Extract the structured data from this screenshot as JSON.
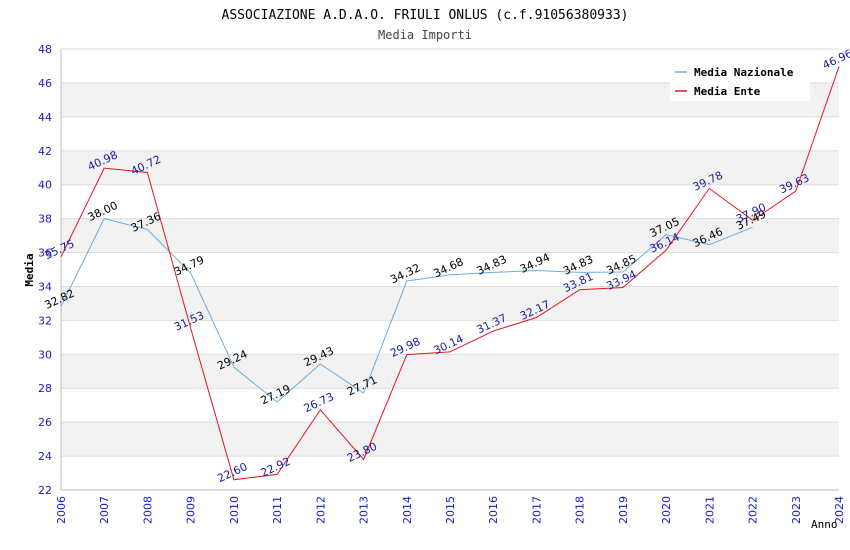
{
  "chart_data": {
    "type": "line",
    "title": "ASSOCIAZIONE A.D.A.O. FRIULI ONLUS (c.f.91056380933)",
    "subtitle": "Media Importi",
    "ylabel": "Media",
    "xlabel": "Anno",
    "ylim": [
      22,
      48
    ],
    "yticks": [
      "22",
      "24",
      "26",
      "28",
      "30",
      "32",
      "34",
      "36",
      "38",
      "40",
      "42",
      "44",
      "46",
      "48"
    ],
    "x": [
      "2006",
      "2007",
      "2008",
      "2009",
      "2010",
      "2011",
      "2012",
      "2013",
      "2014",
      "2015",
      "2016",
      "2017",
      "2018",
      "2019",
      "2020",
      "2021",
      "2022",
      "2023",
      "2024"
    ],
    "grid": "horizontal bands",
    "legend_position": "top-right",
    "series": [
      {
        "name": "Media Nazionale",
        "color": "#6aaee6",
        "label_color": "#000000",
        "values": [
          32.82,
          38.0,
          37.36,
          34.79,
          29.24,
          27.19,
          29.43,
          27.71,
          34.32,
          34.68,
          34.83,
          34.94,
          34.83,
          34.85,
          37.05,
          36.46,
          37.49,
          null,
          null
        ],
        "labels": [
          "32.82",
          "38.00",
          "37.36",
          "34.79",
          "29.24",
          "27.19",
          "29.43",
          "27.71",
          "34.32",
          "34.68",
          "34.83",
          "34.94",
          "34.83",
          "34.85",
          "37.05",
          "36.46",
          "37.49",
          "",
          ""
        ]
      },
      {
        "name": "Media Ente",
        "color": "#e8141e",
        "label_color": "#1a1aa0",
        "values": [
          35.75,
          40.98,
          40.72,
          31.53,
          22.6,
          22.92,
          26.73,
          23.8,
          29.98,
          30.14,
          31.37,
          32.17,
          33.81,
          33.94,
          36.14,
          39.78,
          37.9,
          39.63,
          46.96
        ],
        "labels": [
          "35.75",
          "40.98",
          "40.72",
          "31.53",
          "22.60",
          "22.92",
          "26.73",
          "23.80",
          "29.98",
          "30.14",
          "31.37",
          "32.17",
          "33.81",
          "33.94",
          "36.14",
          "39.78",
          "37.90",
          "39.63",
          "46.96"
        ]
      }
    ],
    "axis_label_color": "#1a1acc"
  }
}
